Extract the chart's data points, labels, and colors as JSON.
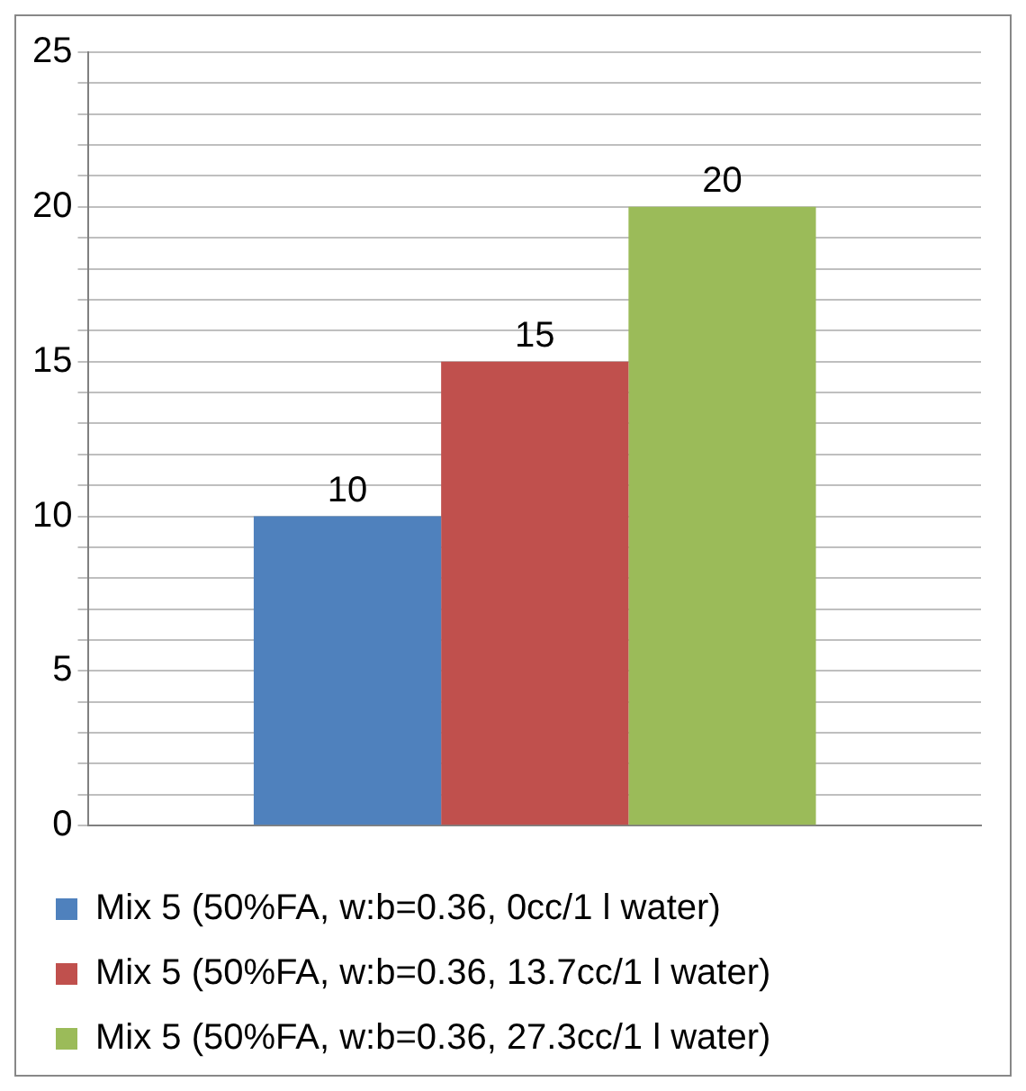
{
  "chart_data": {
    "type": "bar",
    "categories": [
      null
    ],
    "series": [
      {
        "name": "Mix 5 (50%FA, w:b=0.36, 0cc/1 l water)",
        "color": "#4f81bd",
        "values": [
          10
        ]
      },
      {
        "name": "Mix 5 (50%FA, w:b=0.36, 13.7cc/1 l water)",
        "color": "#c0504d",
        "values": [
          15
        ]
      },
      {
        "name": "Mix 5 (50%FA, w:b=0.36, 27.3cc/1 l water)",
        "color": "#9bbb59",
        "values": [
          20
        ]
      }
    ],
    "ylim": [
      0,
      25
    ],
    "yticks": [
      0,
      {
        "value": 1,
        "label": null
      },
      {
        "value": 2,
        "label": null
      },
      {
        "value": 3,
        "label": null
      },
      {
        "value": 4,
        "label": null
      },
      5,
      {
        "value": 6,
        "label": null
      },
      {
        "value": 7,
        "label": null
      },
      {
        "value": 8,
        "label": null
      },
      {
        "value": 9,
        "label": null
      },
      10,
      {
        "value": 11,
        "label": null
      },
      {
        "value": 12,
        "label": null
      },
      {
        "value": 13,
        "label": null
      },
      {
        "value": 14,
        "label": null
      },
      15,
      {
        "value": 16,
        "label": null
      },
      {
        "value": 17,
        "label": null
      },
      {
        "value": 18,
        "label": null
      },
      {
        "value": 19,
        "label": null
      },
      20,
      {
        "value": 21,
        "label": null
      },
      {
        "value": 22,
        "label": null
      },
      {
        "value": 23,
        "label": null
      },
      {
        "value": 24,
        "label": null
      },
      25
    ],
    "grid": "y",
    "legend": "bottom",
    "data_labels": true
  }
}
